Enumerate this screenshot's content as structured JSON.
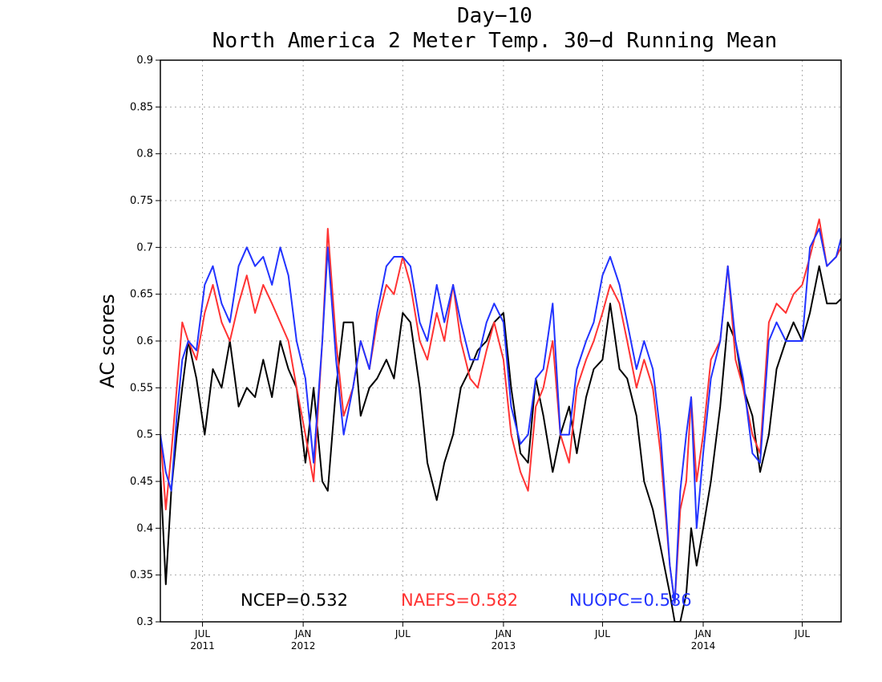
{
  "chart_data": {
    "type": "line",
    "title": "Day−10",
    "subtitle": "North America 2 Meter Temp. 30−d Running Mean",
    "ylabel": "AC scores",
    "xlabel": "",
    "ylim": [
      0.3,
      0.9
    ],
    "xlim": [
      "2011-04-15",
      "2014-09-10"
    ],
    "grid": true,
    "yticks": [
      "0.3",
      "0.35",
      "0.4",
      "0.45",
      "0.5",
      "0.55",
      "0.6",
      "0.65",
      "0.7",
      "0.75",
      "0.8",
      "0.85",
      "0.9"
    ],
    "xticks": [
      {
        "date": "2011-07-01",
        "month": "JUL",
        "year": "2011"
      },
      {
        "date": "2012-01-01",
        "month": "JAN",
        "year": "2012"
      },
      {
        "date": "2012-07-01",
        "month": "JUL",
        "year": ""
      },
      {
        "date": "2013-01-01",
        "month": "JAN",
        "year": "2013"
      },
      {
        "date": "2013-07-01",
        "month": "JUL",
        "year": ""
      },
      {
        "date": "2014-01-01",
        "month": "JAN",
        "year": "2014"
      },
      {
        "date": "2014-07-01",
        "month": "JUL",
        "year": ""
      }
    ],
    "series": [
      {
        "name": "NCEP",
        "color": "#000000",
        "mean_label": "NCEP=0.532",
        "x": [
          "2011-04-15",
          "2011-04-25",
          "2011-05-05",
          "2011-05-15",
          "2011-05-25",
          "2011-06-05",
          "2011-06-20",
          "2011-07-05",
          "2011-07-20",
          "2011-08-05",
          "2011-08-20",
          "2011-09-05",
          "2011-09-20",
          "2011-10-05",
          "2011-10-20",
          "2011-11-05",
          "2011-11-20",
          "2011-12-05",
          "2011-12-20",
          "2012-01-05",
          "2012-01-20",
          "2012-02-05",
          "2012-02-15",
          "2012-03-01",
          "2012-03-15",
          "2012-04-01",
          "2012-04-15",
          "2012-05-01",
          "2012-05-15",
          "2012-06-01",
          "2012-06-15",
          "2012-07-01",
          "2012-07-15",
          "2012-08-01",
          "2012-08-15",
          "2012-09-01",
          "2012-09-15",
          "2012-10-01",
          "2012-10-15",
          "2012-11-01",
          "2012-11-15",
          "2012-12-01",
          "2012-12-15",
          "2013-01-01",
          "2013-01-15",
          "2013-02-01",
          "2013-02-15",
          "2013-03-01",
          "2013-03-15",
          "2013-04-01",
          "2013-04-15",
          "2013-05-01",
          "2013-05-15",
          "2013-06-01",
          "2013-06-15",
          "2013-07-01",
          "2013-07-15",
          "2013-08-01",
          "2013-08-15",
          "2013-09-01",
          "2013-09-15",
          "2013-10-01",
          "2013-10-15",
          "2013-11-01",
          "2013-11-10",
          "2013-11-20",
          "2013-12-01",
          "2013-12-10",
          "2013-12-20",
          "2014-01-01",
          "2014-01-15",
          "2014-02-01",
          "2014-02-15",
          "2014-03-01",
          "2014-03-15",
          "2014-04-01",
          "2014-04-15",
          "2014-05-01",
          "2014-05-15",
          "2014-06-01",
          "2014-06-15",
          "2014-07-01",
          "2014-07-15",
          "2014-08-01",
          "2014-08-15",
          "2014-09-01",
          "2014-09-10"
        ],
        "y": [
          0.46,
          0.34,
          0.44,
          0.5,
          0.55,
          0.6,
          0.56,
          0.5,
          0.57,
          0.55,
          0.6,
          0.53,
          0.55,
          0.54,
          0.58,
          0.54,
          0.6,
          0.57,
          0.55,
          0.47,
          0.55,
          0.45,
          0.44,
          0.55,
          0.62,
          0.62,
          0.52,
          0.55,
          0.56,
          0.58,
          0.56,
          0.63,
          0.62,
          0.55,
          0.47,
          0.43,
          0.47,
          0.5,
          0.55,
          0.57,
          0.59,
          0.6,
          0.62,
          0.63,
          0.55,
          0.48,
          0.47,
          0.56,
          0.52,
          0.46,
          0.5,
          0.53,
          0.48,
          0.54,
          0.57,
          0.58,
          0.64,
          0.57,
          0.56,
          0.52,
          0.45,
          0.42,
          0.38,
          0.33,
          0.3,
          0.3,
          0.33,
          0.4,
          0.36,
          0.4,
          0.45,
          0.53,
          0.62,
          0.6,
          0.55,
          0.52,
          0.46,
          0.5,
          0.57,
          0.6,
          0.62,
          0.6,
          0.63,
          0.68,
          0.64,
          0.64,
          0.645
        ]
      },
      {
        "name": "NAEFS",
        "color": "#ff3333",
        "mean_label": "NAEFS=0.582",
        "x": [
          "2011-04-15",
          "2011-04-25",
          "2011-05-05",
          "2011-05-15",
          "2011-05-25",
          "2011-06-05",
          "2011-06-20",
          "2011-07-05",
          "2011-07-20",
          "2011-08-05",
          "2011-08-20",
          "2011-09-05",
          "2011-09-20",
          "2011-10-05",
          "2011-10-20",
          "2011-11-05",
          "2011-11-20",
          "2011-12-05",
          "2011-12-20",
          "2012-01-05",
          "2012-01-20",
          "2012-02-05",
          "2012-02-15",
          "2012-03-01",
          "2012-03-15",
          "2012-04-01",
          "2012-04-15",
          "2012-05-01",
          "2012-05-15",
          "2012-06-01",
          "2012-06-15",
          "2012-07-01",
          "2012-07-15",
          "2012-08-01",
          "2012-08-15",
          "2012-09-01",
          "2012-09-15",
          "2012-10-01",
          "2012-10-15",
          "2012-11-01",
          "2012-11-15",
          "2012-12-01",
          "2012-12-15",
          "2013-01-01",
          "2013-01-15",
          "2013-02-01",
          "2013-02-15",
          "2013-03-01",
          "2013-03-15",
          "2013-04-01",
          "2013-04-15",
          "2013-05-01",
          "2013-05-15",
          "2013-06-01",
          "2013-06-15",
          "2013-07-01",
          "2013-07-15",
          "2013-08-01",
          "2013-08-15",
          "2013-09-01",
          "2013-09-15",
          "2013-10-01",
          "2013-10-15",
          "2013-11-01",
          "2013-11-10",
          "2013-11-20",
          "2013-12-01",
          "2013-12-10",
          "2013-12-20",
          "2014-01-01",
          "2014-01-15",
          "2014-02-01",
          "2014-02-15",
          "2014-03-01",
          "2014-03-15",
          "2014-04-01",
          "2014-04-15",
          "2014-05-01",
          "2014-05-15",
          "2014-06-01",
          "2014-06-15",
          "2014-07-01",
          "2014-07-15",
          "2014-08-01",
          "2014-08-15",
          "2014-09-01",
          "2014-09-10"
        ],
        "y": [
          0.5,
          0.42,
          0.48,
          0.55,
          0.62,
          0.6,
          0.58,
          0.63,
          0.66,
          0.62,
          0.6,
          0.64,
          0.67,
          0.63,
          0.66,
          0.64,
          0.62,
          0.6,
          0.55,
          0.5,
          0.45,
          0.6,
          0.72,
          0.6,
          0.52,
          0.55,
          0.6,
          0.57,
          0.62,
          0.66,
          0.65,
          0.69,
          0.66,
          0.6,
          0.58,
          0.63,
          0.6,
          0.66,
          0.6,
          0.56,
          0.55,
          0.59,
          0.62,
          0.58,
          0.5,
          0.46,
          0.44,
          0.53,
          0.55,
          0.6,
          0.5,
          0.47,
          0.55,
          0.58,
          0.6,
          0.63,
          0.66,
          0.64,
          0.6,
          0.55,
          0.58,
          0.55,
          0.48,
          0.36,
          0.32,
          0.42,
          0.45,
          0.54,
          0.45,
          0.5,
          0.58,
          0.6,
          0.68,
          0.58,
          0.55,
          0.5,
          0.48,
          0.62,
          0.64,
          0.63,
          0.65,
          0.66,
          0.69,
          0.73,
          0.68,
          0.69,
          0.7
        ]
      },
      {
        "name": "NUOPC",
        "color": "#2233ff",
        "mean_label": "NUOPC=0.586",
        "x": [
          "2011-04-15",
          "2011-04-25",
          "2011-05-05",
          "2011-05-15",
          "2011-05-25",
          "2011-06-05",
          "2011-06-20",
          "2011-07-05",
          "2011-07-20",
          "2011-08-05",
          "2011-08-20",
          "2011-09-05",
          "2011-09-20",
          "2011-10-05",
          "2011-10-20",
          "2011-11-05",
          "2011-11-20",
          "2011-12-05",
          "2011-12-20",
          "2012-01-05",
          "2012-01-20",
          "2012-02-05",
          "2012-02-15",
          "2012-03-01",
          "2012-03-15",
          "2012-04-01",
          "2012-04-15",
          "2012-05-01",
          "2012-05-15",
          "2012-06-01",
          "2012-06-15",
          "2012-07-01",
          "2012-07-15",
          "2012-08-01",
          "2012-08-15",
          "2012-09-01",
          "2012-09-15",
          "2012-10-01",
          "2012-10-15",
          "2012-11-01",
          "2012-11-15",
          "2012-12-01",
          "2012-12-15",
          "2013-01-01",
          "2013-01-15",
          "2013-02-01",
          "2013-02-15",
          "2013-03-01",
          "2013-03-15",
          "2013-04-01",
          "2013-04-15",
          "2013-05-01",
          "2013-05-15",
          "2013-06-01",
          "2013-06-15",
          "2013-07-01",
          "2013-07-15",
          "2013-08-01",
          "2013-08-15",
          "2013-09-01",
          "2013-09-15",
          "2013-10-01",
          "2013-10-15",
          "2013-11-01",
          "2013-11-10",
          "2013-11-20",
          "2013-12-01",
          "2013-12-10",
          "2013-12-20",
          "2014-01-01",
          "2014-01-15",
          "2014-02-01",
          "2014-02-15",
          "2014-03-01",
          "2014-03-15",
          "2014-04-01",
          "2014-04-15",
          "2014-05-01",
          "2014-05-15",
          "2014-06-01",
          "2014-06-15",
          "2014-07-01",
          "2014-07-15",
          "2014-08-01",
          "2014-08-15",
          "2014-09-01",
          "2014-09-10"
        ],
        "y": [
          0.5,
          0.46,
          0.44,
          0.52,
          0.58,
          0.6,
          0.59,
          0.66,
          0.68,
          0.64,
          0.62,
          0.68,
          0.7,
          0.68,
          0.69,
          0.66,
          0.7,
          0.67,
          0.6,
          0.56,
          0.47,
          0.6,
          0.7,
          0.58,
          0.5,
          0.55,
          0.6,
          0.57,
          0.63,
          0.68,
          0.69,
          0.69,
          0.68,
          0.62,
          0.6,
          0.66,
          0.62,
          0.66,
          0.62,
          0.58,
          0.58,
          0.62,
          0.64,
          0.62,
          0.53,
          0.49,
          0.5,
          0.56,
          0.57,
          0.64,
          0.5,
          0.5,
          0.57,
          0.6,
          0.62,
          0.67,
          0.69,
          0.66,
          0.62,
          0.57,
          0.6,
          0.57,
          0.5,
          0.36,
          0.32,
          0.44,
          0.5,
          0.54,
          0.4,
          0.48,
          0.56,
          0.6,
          0.68,
          0.6,
          0.56,
          0.48,
          0.47,
          0.6,
          0.62,
          0.6,
          0.6,
          0.6,
          0.7,
          0.72,
          0.68,
          0.69,
          0.71
        ]
      }
    ]
  }
}
